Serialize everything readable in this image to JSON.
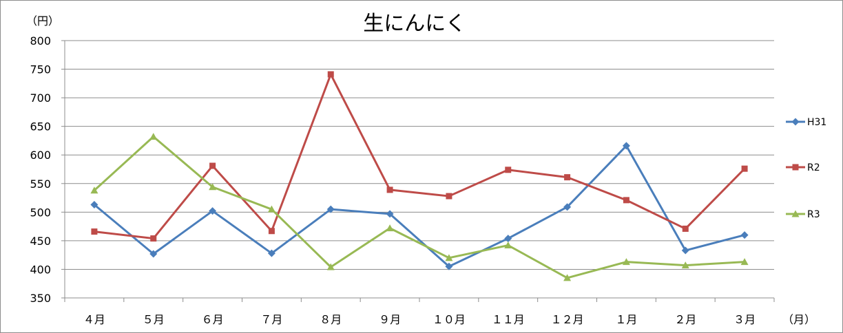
{
  "chart_data": {
    "type": "line",
    "title": "生にんにく",
    "ylabel": "（円）",
    "xlabel": "（月）",
    "ylim": [
      350,
      800
    ],
    "y_ticks": [
      350,
      400,
      450,
      500,
      550,
      600,
      650,
      700,
      750,
      800
    ],
    "categories": [
      "４月",
      "５月",
      "６月",
      "７月",
      "８月",
      "９月",
      "１０月",
      "１１月",
      "１２月",
      "１月",
      "２月",
      "３月"
    ],
    "grid": true,
    "legend_position": "right",
    "series": [
      {
        "name": "H31",
        "color": "#4a7ebb",
        "marker": "diamond",
        "values": [
          513,
          427,
          502,
          428,
          505,
          497,
          405,
          454,
          509,
          616,
          433,
          460
        ]
      },
      {
        "name": "R2",
        "color": "#be4b48",
        "marker": "square",
        "values": [
          466,
          454,
          581,
          467,
          741,
          539,
          528,
          574,
          561,
          521,
          471,
          576
        ]
      },
      {
        "name": "R3",
        "color": "#98b954",
        "marker": "triangle",
        "values": [
          538,
          632,
          544,
          505,
          404,
          472,
          420,
          442,
          385,
          413,
          407,
          413
        ]
      }
    ]
  }
}
